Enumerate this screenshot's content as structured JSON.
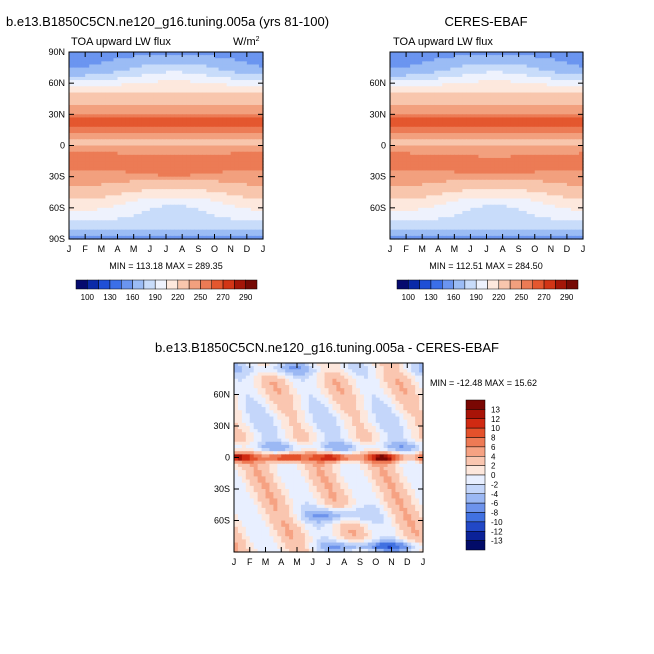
{
  "chart_data": [
    {
      "type": "heatmap",
      "title": "b.e13.B1850C5CN.ne120_g16.tuning.005a (yrs 81-100)",
      "subtitle_left": "TOA upward LW flux",
      "units_base": "W/m",
      "units_exp": "2",
      "stats": "MIN = 113.18 MAX = 289.35",
      "x_ticks": [
        "J",
        "F",
        "M",
        "A",
        "M",
        "J",
        "J",
        "A",
        "S",
        "O",
        "N",
        "D",
        "J"
      ],
      "y_ticks": [
        "90N",
        "60N",
        "30N",
        "0",
        "30S",
        "60S",
        "90S"
      ],
      "y_tick_lat": [
        90,
        60,
        30,
        0,
        -30,
        -60,
        -90
      ],
      "xlim": [
        0,
        12
      ],
      "ylim": [
        -90,
        90
      ],
      "colorbar_labels": [
        "100",
        "130",
        "160",
        "190",
        "220",
        "250",
        "270",
        "290"
      ],
      "colorbar_levels": [
        100,
        115,
        130,
        145,
        160,
        175,
        190,
        205,
        220,
        235,
        250,
        260,
        270,
        280,
        290
      ]
    },
    {
      "type": "heatmap",
      "title": "CERES-EBAF",
      "subtitle_left": "TOA upward LW flux",
      "stats": "MIN = 112.51 MAX = 284.50",
      "x_ticks": [
        "J",
        "F",
        "M",
        "A",
        "M",
        "J",
        "J",
        "A",
        "S",
        "O",
        "N",
        "D",
        "J"
      ],
      "y_ticks": [
        "60N",
        "30N",
        "0",
        "30S",
        "60S"
      ],
      "y_tick_lat": [
        60,
        30,
        0,
        -30,
        -60
      ],
      "xlim": [
        0,
        12
      ],
      "ylim": [
        -90,
        90
      ],
      "colorbar_labels": [
        "100",
        "130",
        "160",
        "190",
        "220",
        "250",
        "270",
        "290"
      ],
      "colorbar_levels": [
        100,
        115,
        130,
        145,
        160,
        175,
        190,
        205,
        220,
        235,
        250,
        260,
        270,
        280,
        290
      ]
    },
    {
      "type": "heatmap",
      "title": "b.e13.B1850C5CN.ne120_g16.tuning.005a - CERES-EBAF",
      "stats": "MIN = -12.48 MAX =  15.62",
      "x_ticks": [
        "J",
        "F",
        "M",
        "A",
        "M",
        "J",
        "J",
        "A",
        "S",
        "O",
        "N",
        "D",
        "J"
      ],
      "y_ticks": [
        "60N",
        "30N",
        "0",
        "30S",
        "60S"
      ],
      "y_tick_lat": [
        60,
        30,
        0,
        -30,
        -60
      ],
      "xlim": [
        0,
        12
      ],
      "ylim": [
        -90,
        90
      ],
      "colorbar_labels": [
        "13",
        "12",
        "10",
        "8",
        "6",
        "4",
        "2",
        "0",
        "-2",
        "-4",
        "-6",
        "-8",
        "-10",
        "-12",
        "-13"
      ]
    }
  ],
  "colors": {
    "background": "#ffffff",
    "flux_scale": [
      "#050a6e",
      "#0a2aa8",
      "#1f4fd6",
      "#3b6fe8",
      "#6b95f0",
      "#9bbcf5",
      "#c8dcfa",
      "#eef2fd",
      "#fde8dd",
      "#f8c6ad",
      "#f2a07e",
      "#ec7b55",
      "#e4572f",
      "#d23516",
      "#a41608",
      "#760a05"
    ],
    "diff_scale": [
      "#7a0703",
      "#a81307",
      "#d02a12",
      "#e4512b",
      "#ee7a55",
      "#f6a283",
      "#fac6b0",
      "#fde7dc",
      "#e8efff",
      "#c4d6fa",
      "#9bb8f4",
      "#6d93ec",
      "#4171e1",
      "#2248c6",
      "#0b2298",
      "#020b68"
    ]
  }
}
